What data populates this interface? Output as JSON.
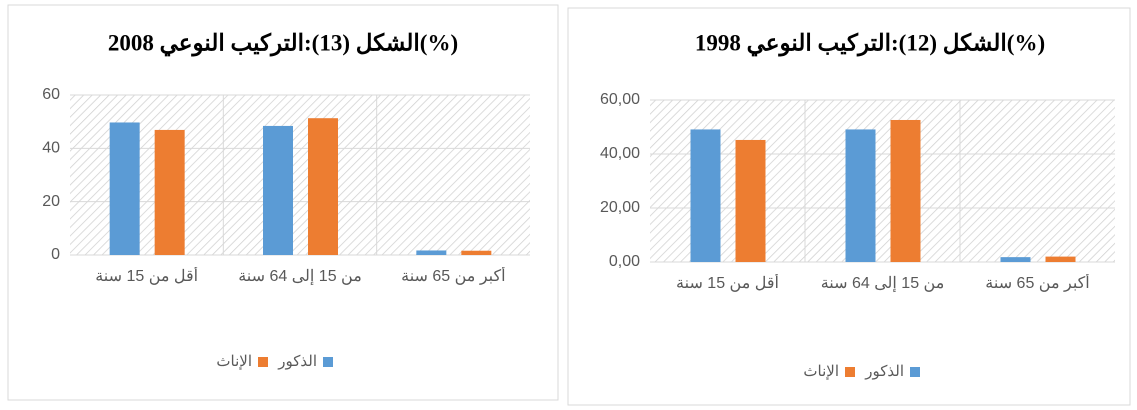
{
  "chart_data": [
    {
      "type": "bar",
      "title": "الشكل (13):التركيب النوعي 2008(%)",
      "categories": [
        "أقل من 15 سنة",
        "من 15 إلى 64 سنة",
        "أكبر من 65 سنة"
      ],
      "series": [
        {
          "name": "الذكور",
          "color": "#5b9bd5",
          "values": [
            49.7,
            48.4,
            1.7
          ]
        },
        {
          "name": "الإناث",
          "color": "#ed7d31",
          "values": [
            46.9,
            51.3,
            1.6
          ]
        }
      ],
      "ylim": [
        0,
        60
      ],
      "yticks": [
        0,
        20,
        40,
        60
      ],
      "grid": true
    },
    {
      "type": "bar",
      "title": "الشكل (12):التركيب النوعي 1998(%)",
      "categories": [
        "أقل من 15 سنة",
        "من 15 إلى 64 سنة",
        "أكبر من 65 سنة"
      ],
      "series": [
        {
          "name": "الذكور",
          "color": "#5b9bd5",
          "values": [
            49.1,
            49.1,
            1.8
          ]
        },
        {
          "name": "الإناث",
          "color": "#ed7d31",
          "values": [
            45.2,
            52.6,
            2.0
          ]
        }
      ],
      "ylim": [
        0,
        60
      ],
      "yticks": [
        {
          "value": 0,
          "label": "0,00"
        },
        {
          "value": 20,
          "label": "20,00"
        },
        {
          "value": 40,
          "label": "40,00"
        },
        {
          "value": 60,
          "label": "60,00"
        }
      ],
      "grid": true
    }
  ]
}
